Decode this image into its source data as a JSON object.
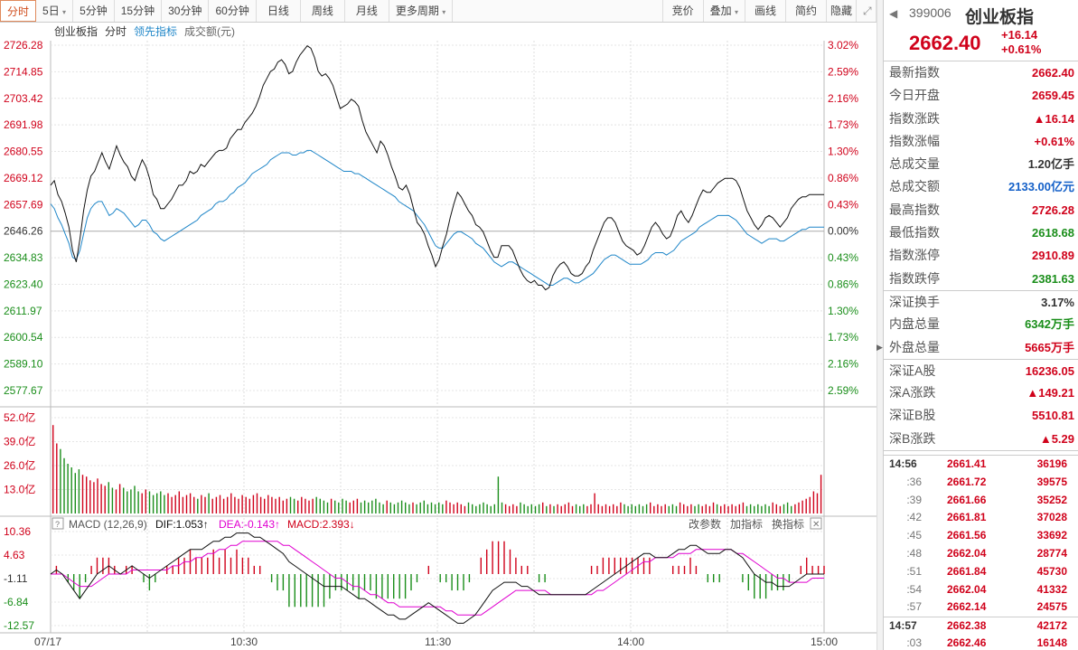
{
  "toolbar": {
    "periods": [
      "分时",
      "5日",
      "5分钟",
      "15分钟",
      "30分钟",
      "60分钟",
      "日线",
      "周线",
      "月线",
      "更多周期"
    ],
    "right": [
      "竞价",
      "叠加",
      "画线",
      "简约",
      "隐藏"
    ]
  },
  "legend": {
    "name": "创业板指",
    "mode": "分时",
    "lead": "领先指标",
    "volume": "成交额(元)"
  },
  "y_left": [
    "2726.28",
    "2714.85",
    "2703.42",
    "2691.98",
    "2680.55",
    "2669.12",
    "2657.69",
    "2646.26",
    "2634.83",
    "2623.40",
    "2611.97",
    "2600.54",
    "2589.10",
    "2577.67"
  ],
  "y_right": [
    "3.02%",
    "2.59%",
    "2.16%",
    "1.73%",
    "1.30%",
    "0.86%",
    "0.43%",
    "0.00%",
    "0.43%",
    "0.86%",
    "1.30%",
    "1.73%",
    "2.16%",
    "2.59%"
  ],
  "vol_labels": [
    "52.0亿",
    "39.0亿",
    "26.0亿",
    "13.0亿"
  ],
  "macd": {
    "title": "MACD (12,26,9)",
    "dif": "DIF:1.053↑",
    "dea": "DEA:-0.143↑",
    "macd": "MACD:2.393↓",
    "buttons": [
      "改参数",
      "加指标",
      "换指标"
    ],
    "y_labels": [
      "10.36",
      "4.63",
      "-1.11",
      "-6.84",
      "-12.57"
    ]
  },
  "x_labels": [
    "07/17",
    "10:30",
    "11:30",
    "14:00",
    "15:00"
  ],
  "colors": {
    "price_line": "#111111",
    "avg_line": "#1f86c8",
    "dif_line": "#111111",
    "dea_line": "#e000d0",
    "up": "#d0021b",
    "down": "#1a8e1a",
    "grid": "#d8d8d8"
  },
  "chart_data": {
    "type": "line",
    "title": "创业板指 分时",
    "prev_close": 2646.26,
    "price_series": [
      2666,
      2668,
      2662,
      2659,
      2654,
      2648,
      2638,
      2633,
      2643,
      2655,
      2664,
      2670,
      2672,
      2676,
      2680,
      2676,
      2673,
      2678,
      2683,
      2679,
      2676,
      2674,
      2670,
      2668,
      2673,
      2677,
      2674,
      2669,
      2662,
      2660,
      2656,
      2656,
      2658,
      2660,
      2663,
      2666,
      2666,
      2668,
      2672,
      2671,
      2672,
      2675,
      2674,
      2676,
      2678,
      2680,
      2681,
      2681,
      2682,
      2686,
      2688,
      2690,
      2690,
      2693,
      2695,
      2697,
      2700,
      2704,
      2709,
      2712,
      2715,
      2716,
      2719,
      2720,
      2718,
      2714,
      2715,
      2719,
      2722,
      2724,
      2726,
      2725,
      2721,
      2715,
      2713,
      2714,
      2712,
      2709,
      2704,
      2699,
      2700,
      2701,
      2703,
      2702,
      2700,
      2694,
      2689,
      2686,
      2683,
      2680,
      2685,
      2683,
      2679,
      2674,
      2670,
      2665,
      2664,
      2666,
      2662,
      2656,
      2650,
      2648,
      2645,
      2640,
      2636,
      2631,
      2634,
      2640,
      2645,
      2652,
      2658,
      2663,
      2661,
      2658,
      2655,
      2653,
      2649,
      2648,
      2646,
      2642,
      2638,
      2635,
      2635,
      2640,
      2640,
      2640,
      2638,
      2634,
      2630,
      2627,
      2625,
      2624,
      2625,
      2623,
      2623,
      2621,
      2622,
      2627,
      2630,
      2632,
      2633,
      2631,
      2628,
      2627,
      2627,
      2628,
      2631,
      2633,
      2638,
      2642,
      2646,
      2650,
      2652,
      2652,
      2650,
      2646,
      2642,
      2640,
      2639,
      2638,
      2636,
      2637,
      2640,
      2644,
      2648,
      2650,
      2648,
      2645,
      2643,
      2644,
      2648,
      2653,
      2655,
      2652,
      2650,
      2653,
      2657,
      2661,
      2664,
      2663,
      2663,
      2665,
      2667,
      2668,
      2669,
      2669,
      2669,
      2668,
      2665,
      2660,
      2655,
      2652,
      2649,
      2647,
      2649,
      2652,
      2653,
      2652,
      2650,
      2648,
      2650,
      2652,
      2656,
      2658,
      2660,
      2661,
      2661,
      2662,
      2662,
      2662,
      2662,
      2662
    ],
    "avg_series": [
      2658,
      2656,
      2652,
      2649,
      2645,
      2641,
      2635,
      2634,
      2638,
      2645,
      2652,
      2656,
      2658,
      2659,
      2659,
      2656,
      2653,
      2654,
      2656,
      2655,
      2654,
      2652,
      2650,
      2648,
      2649,
      2651,
      2651,
      2649,
      2646,
      2645,
      2643,
      2642,
      2643,
      2644,
      2645,
      2646,
      2647,
      2648,
      2649,
      2650,
      2651,
      2653,
      2654,
      2655,
      2656,
      2658,
      2659,
      2659,
      2660,
      2662,
      2663,
      2665,
      2666,
      2667,
      2669,
      2671,
      2672,
      2673,
      2674,
      2675,
      2677,
      2678,
      2679,
      2680,
      2680,
      2680,
      2679,
      2679,
      2680,
      2680,
      2681,
      2681,
      2680,
      2679,
      2678,
      2677,
      2676,
      2675,
      2674,
      2673,
      2672,
      2672,
      2672,
      2671,
      2671,
      2670,
      2669,
      2668,
      2667,
      2666,
      2665,
      2664,
      2663,
      2662,
      2661,
      2659,
      2658,
      2657,
      2656,
      2655,
      2653,
      2651,
      2649,
      2646,
      2643,
      2640,
      2639,
      2639,
      2641,
      2643,
      2645,
      2646,
      2646,
      2645,
      2644,
      2643,
      2641,
      2640,
      2639,
      2637,
      2635,
      2633,
      2632,
      2631,
      2632,
      2633,
      2633,
      2632,
      2631,
      2630,
      2629,
      2628,
      2627,
      2626,
      2625,
      2624,
      2623,
      2623,
      2624,
      2625,
      2626,
      2626,
      2625,
      2624,
      2624,
      2625,
      2626,
      2627,
      2628,
      2630,
      2632,
      2634,
      2635,
      2636,
      2636,
      2635,
      2634,
      2633,
      2632,
      2632,
      2632,
      2632,
      2633,
      2634,
      2636,
      2637,
      2637,
      2637,
      2636,
      2637,
      2638,
      2640,
      2642,
      2643,
      2644,
      2645,
      2646,
      2648,
      2649,
      2650,
      2651,
      2652,
      2653,
      2653,
      2653,
      2653,
      2652,
      2651,
      2649,
      2647,
      2645,
      2644,
      2643,
      2642,
      2641,
      2642,
      2643,
      2643,
      2643,
      2642,
      2642,
      2643,
      2644,
      2645,
      2646,
      2647,
      2647,
      2648,
      2648,
      2648,
      2648,
      2648
    ],
    "volume": [
      48,
      38,
      35,
      30,
      27,
      25,
      22,
      24,
      21,
      20,
      18,
      17,
      19,
      16,
      15,
      17,
      14,
      13,
      16,
      14,
      12,
      13,
      15,
      12,
      11,
      13,
      12,
      10,
      11,
      12,
      10,
      11,
      9,
      10,
      12,
      9,
      10,
      11,
      9,
      8,
      10,
      9,
      11,
      8,
      9,
      10,
      8,
      9,
      11,
      9,
      8,
      10,
      9,
      8,
      10,
      11,
      9,
      8,
      10,
      9,
      8,
      9,
      7,
      8,
      9,
      8,
      7,
      9,
      8,
      7,
      8,
      9,
      8,
      7,
      6,
      8,
      7,
      6,
      8,
      7,
      6,
      7,
      8,
      6,
      7,
      6,
      7,
      8,
      6,
      5,
      7,
      6,
      5,
      6,
      7,
      6,
      5,
      6,
      5,
      6,
      7,
      5,
      6,
      5,
      6,
      5,
      7,
      6,
      5,
      6,
      5,
      4,
      6,
      5,
      4,
      5,
      6,
      5,
      4,
      5,
      20,
      6,
      5,
      4,
      5,
      4,
      6,
      5,
      4,
      5,
      4,
      5,
      6,
      4,
      5,
      4,
      5,
      4,
      5,
      6,
      4,
      5,
      4,
      5,
      4,
      5,
      11,
      5,
      4,
      5,
      4,
      5,
      4,
      6,
      5,
      4,
      5,
      4,
      5,
      4,
      5,
      6,
      4,
      5,
      4,
      5,
      4,
      5,
      4,
      6,
      5,
      4,
      5,
      4,
      5,
      4,
      5,
      4,
      6,
      5,
      4,
      5,
      4,
      5,
      4,
      5,
      6,
      4,
      5,
      4,
      5,
      4,
      5,
      4,
      6,
      5,
      4,
      5,
      6,
      4,
      5,
      6,
      7,
      8,
      9,
      12,
      11,
      21
    ],
    "vol_ylim": [
      0,
      52
    ],
    "dif": [
      0,
      1,
      0,
      -2,
      -4,
      -6,
      -4,
      -2,
      0,
      1,
      2,
      1,
      0,
      1,
      2,
      1,
      0,
      -1,
      0,
      1,
      2,
      3,
      4,
      5,
      6,
      6,
      6,
      7,
      8,
      8,
      9,
      9,
      10,
      10,
      10,
      9,
      9,
      8,
      7,
      6,
      5,
      3,
      2,
      1,
      0,
      -1,
      -2,
      -3,
      -3,
      -3,
      -3,
      -4,
      -5,
      -6,
      -6,
      -7,
      -8,
      -9,
      -10,
      -10,
      -11,
      -11,
      -10,
      -9,
      -8,
      -7,
      -8,
      -9,
      -10,
      -11,
      -12,
      -12,
      -11,
      -10,
      -8,
      -6,
      -4,
      -3,
      -2,
      -2,
      -2,
      -3,
      -3,
      -4,
      -5,
      -5,
      -5,
      -5,
      -5,
      -5,
      -5,
      -5,
      -5,
      -4,
      -3,
      -2,
      -1,
      0,
      1,
      2,
      3,
      4,
      5,
      5,
      4,
      4,
      4,
      5,
      6,
      6,
      7,
      7,
      6,
      5,
      5,
      5,
      6,
      6,
      5,
      4,
      2,
      0,
      -1,
      -2,
      -2,
      -3,
      -3,
      -3,
      -2,
      -1,
      0,
      0,
      0,
      0
    ],
    "dea": [
      0,
      0,
      0,
      -1,
      -2,
      -3,
      -3,
      -3,
      -2,
      -1,
      0,
      0,
      0,
      0,
      1,
      1,
      1,
      1,
      1,
      1,
      1,
      2,
      2,
      3,
      3,
      4,
      4,
      5,
      5,
      6,
      6,
      7,
      7,
      8,
      8,
      8,
      8,
      8,
      8,
      8,
      7,
      7,
      6,
      5,
      4,
      3,
      2,
      1,
      0,
      -1,
      -1,
      -2,
      -3,
      -3,
      -4,
      -5,
      -5,
      -6,
      -7,
      -7,
      -8,
      -8,
      -8,
      -8,
      -8,
      -8,
      -8,
      -8,
      -9,
      -9,
      -10,
      -10,
      -10,
      -10,
      -10,
      -9,
      -8,
      -7,
      -6,
      -5,
      -4,
      -4,
      -4,
      -4,
      -4,
      -4,
      -5,
      -5,
      -5,
      -5,
      -5,
      -5,
      -5,
      -5,
      -4,
      -4,
      -3,
      -2,
      -1,
      0,
      1,
      2,
      3,
      3,
      4,
      4,
      4,
      4,
      5,
      5,
      5,
      6,
      6,
      6,
      6,
      6,
      6,
      6,
      5,
      5,
      4,
      3,
      2,
      1,
      0,
      -1,
      -1,
      -2,
      -2,
      -2,
      -2,
      -1,
      -1,
      -1
    ],
    "macd_ylim": [
      -12.57,
      10.36
    ],
    "price_ylim": [
      2577.67,
      2726.28
    ]
  }
}
